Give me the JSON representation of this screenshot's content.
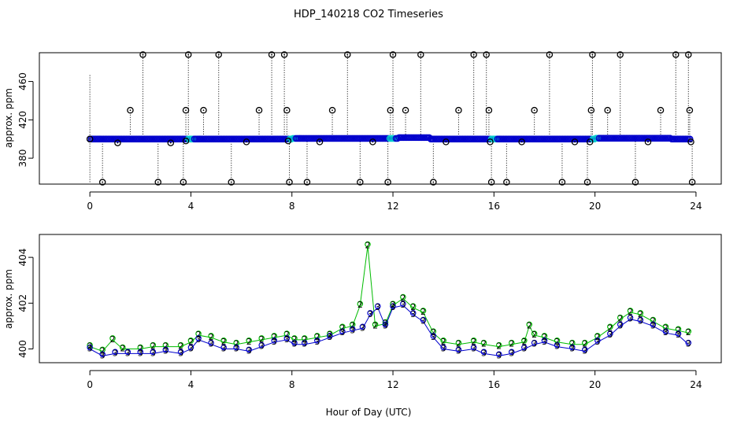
{
  "title": "HDP_140218  CO2 Timeseries",
  "xlabel": "Hour of Day (UTC)",
  "colors": {
    "black": "#000000",
    "blue": "#0000cc",
    "green": "#00bb00",
    "cyan": "#00cccc"
  },
  "chart_data": [
    {
      "type": "scatter",
      "ylabel": "approx. ppm",
      "xlim": [
        -2,
        25
      ],
      "ylim": [
        353,
        490
      ],
      "x_ticks": [
        0,
        4,
        8,
        12,
        16,
        20,
        24
      ],
      "y_ticks": [
        380,
        420,
        460
      ],
      "x_tick_labels": [
        "0",
        "4",
        "8",
        "12",
        "16",
        "20",
        "24"
      ],
      "y_tick_labels": [
        "380",
        "420",
        "460"
      ],
      "series": [
        {
          "marker": "circle-dot",
          "color": "#000000",
          "baseline": 400,
          "points": [
            [
              0.0,
              400
            ],
            [
              0.5,
              355
            ],
            [
              1.1,
              396
            ],
            [
              1.6,
              430
            ],
            [
              2.1,
              488
            ],
            [
              2.7,
              355
            ],
            [
              3.2,
              396
            ],
            [
              3.7,
              355
            ],
            [
              3.8,
              398
            ],
            [
              3.8,
              430
            ],
            [
              3.9,
              488
            ],
            [
              4.5,
              430
            ],
            [
              5.1,
              488
            ],
            [
              5.6,
              355
            ],
            [
              6.2,
              397
            ],
            [
              6.7,
              430
            ],
            [
              7.2,
              488
            ],
            [
              7.7,
              488
            ],
            [
              7.8,
              430
            ],
            [
              7.9,
              355
            ],
            [
              7.85,
              398
            ],
            [
              8.6,
              355
            ],
            [
              9.1,
              397
            ],
            [
              9.6,
              430
            ],
            [
              10.2,
              488
            ],
            [
              10.7,
              355
            ],
            [
              11.2,
              397
            ],
            [
              11.8,
              355
            ],
            [
              11.9,
              430
            ],
            [
              12.0,
              488
            ],
            [
              12.5,
              430
            ],
            [
              13.1,
              488
            ],
            [
              13.6,
              355
            ],
            [
              14.1,
              397
            ],
            [
              14.6,
              430
            ],
            [
              15.2,
              488
            ],
            [
              15.7,
              488
            ],
            [
              15.8,
              430
            ],
            [
              15.85,
              397
            ],
            [
              15.9,
              355
            ],
            [
              16.5,
              355
            ],
            [
              17.1,
              397
            ],
            [
              17.6,
              430
            ],
            [
              18.2,
              488
            ],
            [
              18.7,
              355
            ],
            [
              19.2,
              397
            ],
            [
              19.7,
              355
            ],
            [
              19.8,
              397
            ],
            [
              19.85,
              430
            ],
            [
              19.9,
              488
            ],
            [
              20.5,
              430
            ],
            [
              21.0,
              488
            ],
            [
              21.6,
              355
            ],
            [
              22.1,
              397
            ],
            [
              22.6,
              430
            ],
            [
              23.2,
              488
            ],
            [
              23.7,
              488
            ],
            [
              23.75,
              430
            ],
            [
              23.8,
              397
            ],
            [
              23.85,
              355
            ]
          ]
        }
      ]
    },
    {
      "type": "scatter",
      "ylabel": "approx. ppm",
      "xlim": [
        -2,
        25
      ],
      "ylim": [
        399.4,
        405.0
      ],
      "x_ticks": [
        0,
        4,
        8,
        12,
        16,
        20,
        24
      ],
      "y_ticks": [
        400,
        402,
        404
      ],
      "x_tick_labels": [
        "0",
        "4",
        "8",
        "12",
        "16",
        "20",
        "24"
      ],
      "y_tick_labels": [
        "400",
        "402",
        "404"
      ],
      "series": [
        {
          "marker": "2",
          "color": "#00bb00",
          "points": [
            [
              0.0,
              400.1
            ],
            [
              0.5,
              399.9
            ],
            [
              0.9,
              400.4
            ],
            [
              1.3,
              400.0
            ],
            [
              2.0,
              400.0
            ],
            [
              2.5,
              400.1
            ],
            [
              3.0,
              400.1
            ],
            [
              3.6,
              400.1
            ],
            [
              4.0,
              400.3
            ],
            [
              4.3,
              400.6
            ],
            [
              4.8,
              400.5
            ],
            [
              5.3,
              400.3
            ],
            [
              5.8,
              400.2
            ],
            [
              6.3,
              400.3
            ],
            [
              6.8,
              400.4
            ],
            [
              7.3,
              400.5
            ],
            [
              7.8,
              400.6
            ],
            [
              8.1,
              400.4
            ],
            [
              8.5,
              400.4
            ],
            [
              9.0,
              400.5
            ],
            [
              9.5,
              400.6
            ],
            [
              10.0,
              400.9
            ],
            [
              10.4,
              401.0
            ],
            [
              10.7,
              401.9
            ],
            [
              11.0,
              404.5
            ],
            [
              11.3,
              401.0
            ],
            [
              11.7,
              401.1
            ],
            [
              12.0,
              401.9
            ],
            [
              12.4,
              402.2
            ],
            [
              12.8,
              401.8
            ],
            [
              13.2,
              401.6
            ],
            [
              13.6,
              400.7
            ],
            [
              14.0,
              400.3
            ],
            [
              14.6,
              400.2
            ],
            [
              15.2,
              400.3
            ],
            [
              15.6,
              400.2
            ],
            [
              16.2,
              400.1
            ],
            [
              16.7,
              400.2
            ],
            [
              17.2,
              400.3
            ],
            [
              17.4,
              401.0
            ],
            [
              17.6,
              400.6
            ],
            [
              18.0,
              400.5
            ],
            [
              18.5,
              400.3
            ],
            [
              19.1,
              400.2
            ],
            [
              19.6,
              400.2
            ],
            [
              20.1,
              400.5
            ],
            [
              20.6,
              400.9
            ],
            [
              21.0,
              401.3
            ],
            [
              21.4,
              401.6
            ],
            [
              21.8,
              401.5
            ],
            [
              22.3,
              401.2
            ],
            [
              22.8,
              400.9
            ],
            [
              23.3,
              400.8
            ],
            [
              23.7,
              400.7
            ]
          ]
        },
        {
          "marker": "3",
          "color": "#0000cc",
          "points": [
            [
              0.0,
              400.0
            ],
            [
              0.5,
              399.7
            ],
            [
              1.0,
              399.8
            ],
            [
              1.5,
              399.8
            ],
            [
              2.0,
              399.8
            ],
            [
              2.5,
              399.8
            ],
            [
              3.0,
              399.9
            ],
            [
              3.6,
              399.8
            ],
            [
              4.0,
              400.0
            ],
            [
              4.3,
              400.4
            ],
            [
              4.8,
              400.2
            ],
            [
              5.3,
              400.0
            ],
            [
              5.8,
              400.0
            ],
            [
              6.3,
              399.9
            ],
            [
              6.8,
              400.1
            ],
            [
              7.3,
              400.3
            ],
            [
              7.8,
              400.4
            ],
            [
              8.1,
              400.2
            ],
            [
              8.5,
              400.2
            ],
            [
              9.0,
              400.3
            ],
            [
              9.5,
              400.5
            ],
            [
              10.0,
              400.7
            ],
            [
              10.4,
              400.8
            ],
            [
              10.8,
              400.9
            ],
            [
              11.1,
              401.5
            ],
            [
              11.4,
              401.8
            ],
            [
              11.7,
              401.0
            ],
            [
              12.0,
              401.8
            ],
            [
              12.4,
              401.9
            ],
            [
              12.8,
              401.5
            ],
            [
              13.2,
              401.2
            ],
            [
              13.6,
              400.5
            ],
            [
              14.0,
              400.0
            ],
            [
              14.6,
              399.9
            ],
            [
              15.2,
              400.0
            ],
            [
              15.6,
              399.8
            ],
            [
              16.2,
              399.7
            ],
            [
              16.7,
              399.8
            ],
            [
              17.2,
              400.0
            ],
            [
              17.6,
              400.2
            ],
            [
              18.0,
              400.3
            ],
            [
              18.5,
              400.1
            ],
            [
              19.1,
              400.0
            ],
            [
              19.6,
              399.9
            ],
            [
              20.1,
              400.3
            ],
            [
              20.6,
              400.6
            ],
            [
              21.0,
              401.0
            ],
            [
              21.4,
              401.3
            ],
            [
              21.8,
              401.2
            ],
            [
              22.3,
              401.0
            ],
            [
              22.8,
              400.7
            ],
            [
              23.3,
              400.6
            ],
            [
              23.7,
              400.2
            ]
          ]
        }
      ]
    }
  ]
}
